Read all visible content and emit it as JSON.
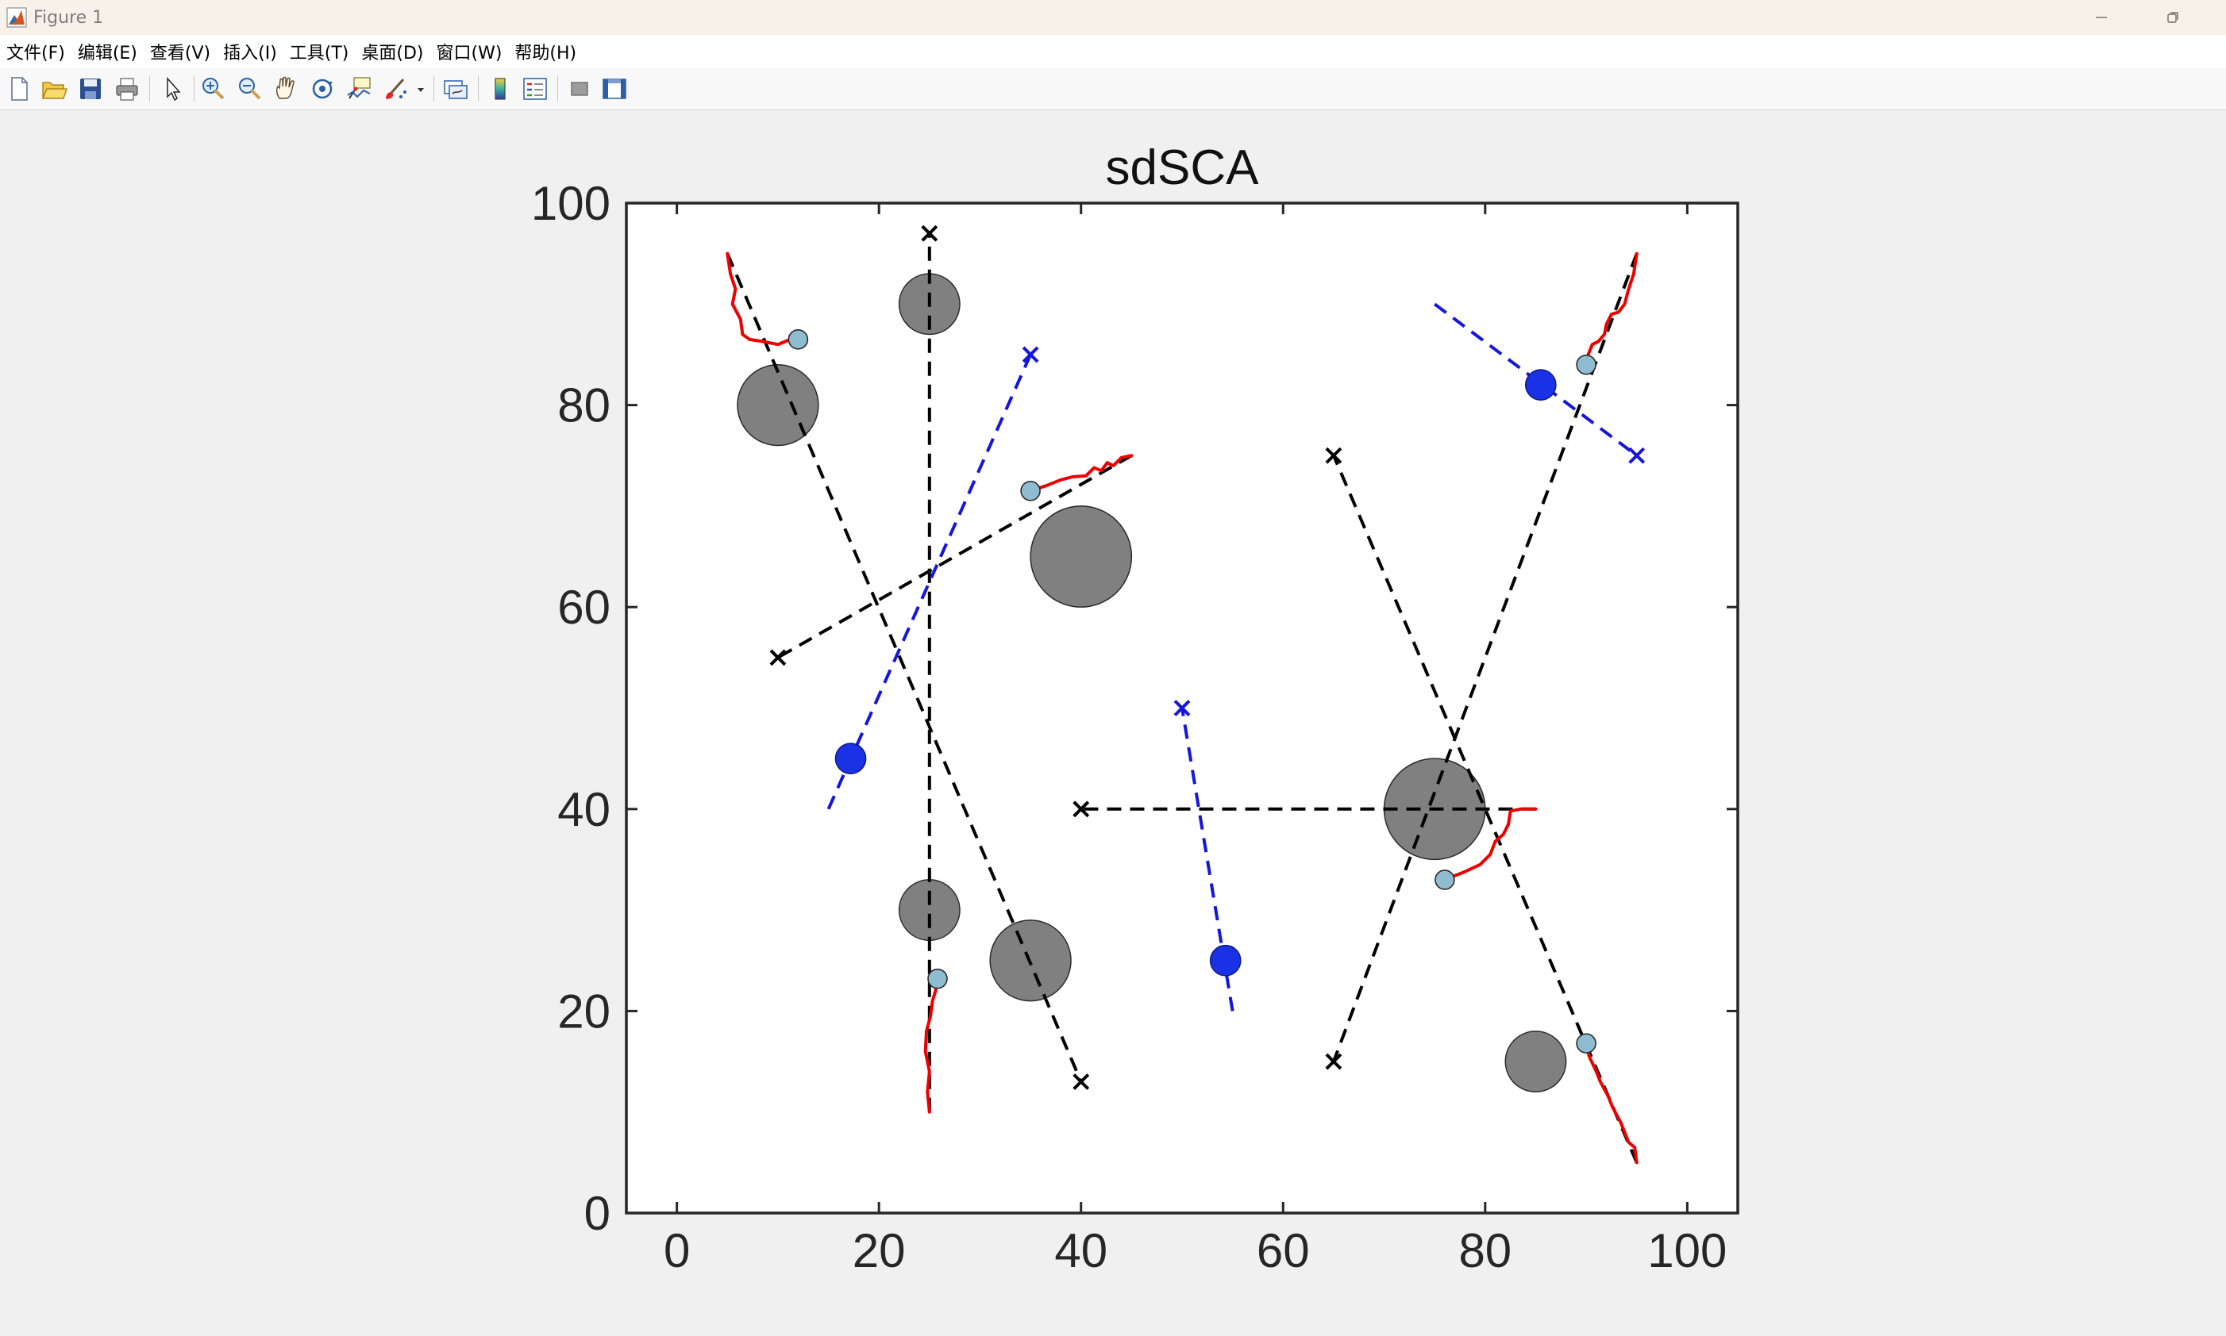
{
  "window": {
    "title": "Figure 1"
  },
  "menu": [
    "文件(F)",
    "编辑(E)",
    "查看(V)",
    "插入(I)",
    "工具(T)",
    "桌面(D)",
    "窗口(W)",
    "帮助(H)"
  ],
  "toolbar_icons": [
    "new-figure-icon",
    "open-file-icon",
    "save-icon",
    "print-icon",
    "edit-plot-icon",
    "zoom-in-icon",
    "zoom-out-icon",
    "pan-icon",
    "rotate-3d-icon",
    "data-cursor-icon",
    "brush-icon",
    "brush-dropdown-icon",
    "link-plot-icon",
    "colorbar-icon",
    "legend-icon",
    "hide-plot-tools-icon",
    "show-plot-tools-icon"
  ],
  "colors": {
    "obstacle": "#808080",
    "black_path": "#000000",
    "blue_path": "#1515dd",
    "red_trajectory": "#ee0000",
    "agent_marker": "#8fbcd0",
    "blue_obstacle": "#1a32e6"
  },
  "chart_data": {
    "type": "scatter",
    "title": "sdSCA",
    "xlabel": "",
    "ylabel": "",
    "xlim": [
      -5,
      105
    ],
    "ylim": [
      0,
      100
    ],
    "xticks": [
      0,
      20,
      40,
      60,
      80,
      100
    ],
    "yticks": [
      0,
      20,
      40,
      60,
      80,
      100
    ],
    "grid": false,
    "obstacles": [
      {
        "x": 10,
        "y": 80,
        "r": 4
      },
      {
        "x": 25,
        "y": 90,
        "r": 3
      },
      {
        "x": 40,
        "y": 65,
        "r": 5
      },
      {
        "x": 25,
        "y": 30,
        "r": 3
      },
      {
        "x": 35,
        "y": 25,
        "r": 4
      },
      {
        "x": 75,
        "y": 40,
        "r": 5
      },
      {
        "x": 85,
        "y": 15,
        "r": 3
      }
    ],
    "moving_obstacles": [
      {
        "x": 17.2,
        "y": 45,
        "r": 1.5
      },
      {
        "x": 54.3,
        "y": 25,
        "r": 1.5
      },
      {
        "x": 85.5,
        "y": 82,
        "r": 1.5
      }
    ],
    "black_paths": [
      {
        "start": [
          5,
          95
        ],
        "goal": [
          40,
          13
        ]
      },
      {
        "start": [
          25,
          10
        ],
        "goal": [
          25,
          97
        ]
      },
      {
        "start": [
          45,
          75
        ],
        "goal": [
          10,
          55
        ]
      },
      {
        "start": [
          85,
          40
        ],
        "goal": [
          40,
          40
        ]
      },
      {
        "start": [
          95,
          5
        ],
        "goal": [
          65,
          75
        ]
      },
      {
        "start": [
          95,
          95
        ],
        "goal": [
          65,
          15
        ]
      }
    ],
    "blue_paths": [
      {
        "start": [
          15,
          40
        ],
        "goal": [
          35,
          85
        ]
      },
      {
        "start": [
          55,
          20
        ],
        "goal": [
          50,
          50
        ]
      },
      {
        "start": [
          75,
          90
        ],
        "goal": [
          95,
          75
        ]
      }
    ],
    "agents": [
      {
        "x": 12,
        "y": 86.5
      },
      {
        "x": 25.8,
        "y": 23.2
      },
      {
        "x": 35,
        "y": 71.5
      },
      {
        "x": 76,
        "y": 33
      },
      {
        "x": 90,
        "y": 16.8
      },
      {
        "x": 90,
        "y": 84
      }
    ],
    "trajectories": [
      [
        [
          5,
          95
        ],
        [
          5.3,
          93
        ],
        [
          5.8,
          91.5
        ],
        [
          5.5,
          90
        ],
        [
          6.3,
          88.5
        ],
        [
          6.5,
          87
        ],
        [
          7.2,
          86.5
        ],
        [
          8.5,
          86.3
        ],
        [
          10,
          86
        ],
        [
          11.2,
          86.5
        ],
        [
          12,
          86.5
        ]
      ],
      [
        [
          25,
          10
        ],
        [
          24.8,
          12
        ],
        [
          25,
          14
        ],
        [
          24.6,
          16
        ],
        [
          24.7,
          18
        ],
        [
          25.1,
          19.5
        ],
        [
          25.3,
          21
        ],
        [
          25.6,
          22
        ],
        [
          25.8,
          23.2
        ]
      ],
      [
        [
          45,
          75
        ],
        [
          44,
          74.8
        ],
        [
          43.2,
          74
        ],
        [
          42.6,
          74.3
        ],
        [
          42,
          73.5
        ],
        [
          41.3,
          73.8
        ],
        [
          40.5,
          73
        ],
        [
          39.2,
          72.9
        ],
        [
          38,
          72.6
        ],
        [
          36.5,
          72
        ],
        [
          35,
          71.5
        ]
      ],
      [
        [
          85,
          40
        ],
        [
          83.5,
          40
        ],
        [
          82.5,
          39.8
        ],
        [
          82.3,
          38.5
        ],
        [
          81.8,
          37.5
        ],
        [
          81,
          36.8
        ],
        [
          80.5,
          35.5
        ],
        [
          79.5,
          34.5
        ],
        [
          78,
          33.8
        ],
        [
          76,
          33
        ]
      ],
      [
        [
          95,
          5
        ],
        [
          94.8,
          6.5
        ],
        [
          94.2,
          7
        ],
        [
          93.8,
          8
        ],
        [
          93.4,
          9
        ],
        [
          92.6,
          10.5
        ],
        [
          92.2,
          11.5
        ],
        [
          91.4,
          13
        ],
        [
          91,
          14
        ],
        [
          90.3,
          15.5
        ],
        [
          90,
          16.8
        ]
      ],
      [
        [
          95,
          95
        ],
        [
          94.7,
          93
        ],
        [
          94.2,
          91.5
        ],
        [
          93.8,
          90
        ],
        [
          93.2,
          89.2
        ],
        [
          92.5,
          89
        ],
        [
          92,
          88
        ],
        [
          91.8,
          87
        ],
        [
          91.2,
          86.3
        ],
        [
          90.6,
          86
        ],
        [
          90.2,
          85
        ],
        [
          90,
          84
        ]
      ]
    ]
  }
}
